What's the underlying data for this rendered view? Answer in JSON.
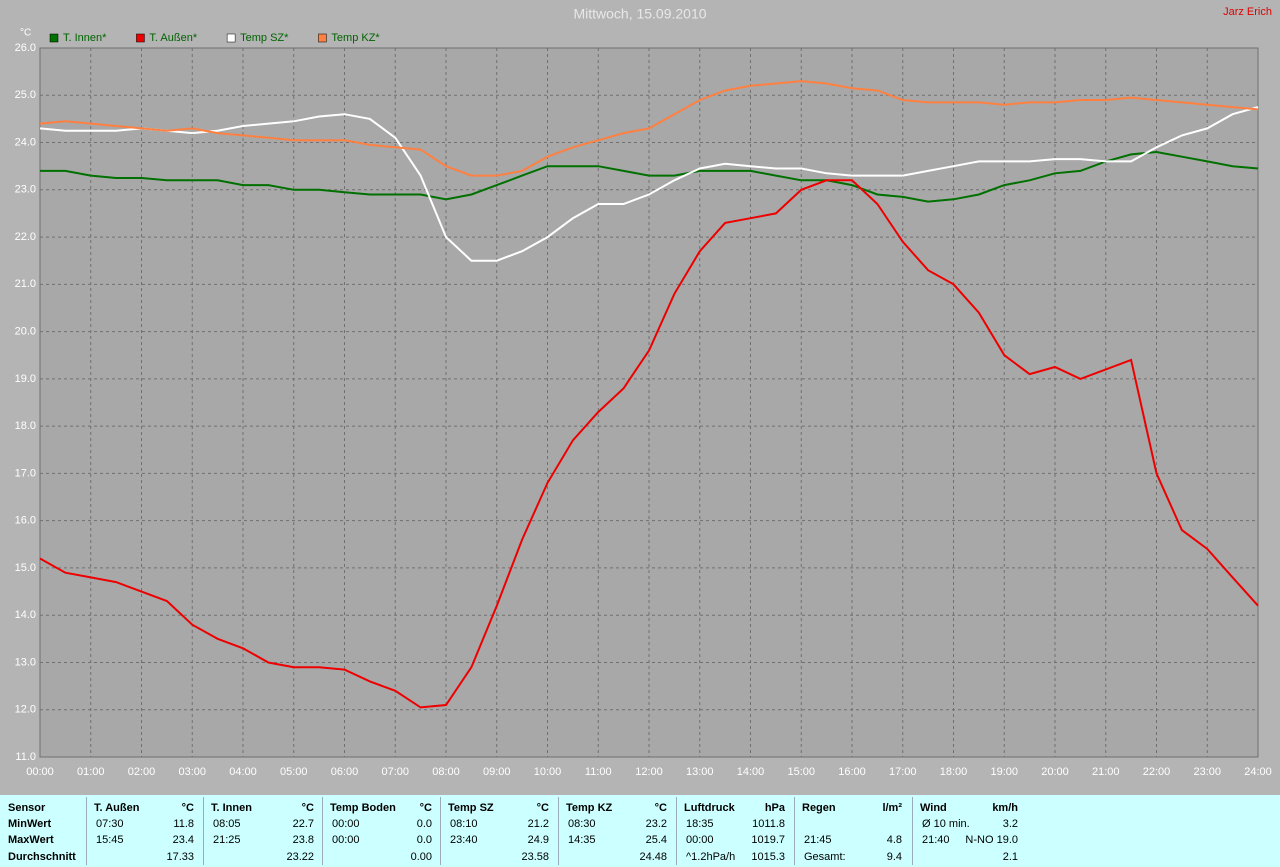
{
  "chart_data": {
    "type": "line",
    "title": "Mittwoch, 15.09.2010",
    "author": "Jarz Erich",
    "y_unit": "°C",
    "x": [
      0,
      0.5,
      1,
      1.5,
      2,
      2.5,
      3,
      3.5,
      4,
      4.5,
      5,
      5.5,
      6,
      6.5,
      7,
      7.5,
      8,
      8.5,
      9,
      9.5,
      10,
      10.5,
      11,
      11.5,
      12,
      12.5,
      13,
      13.5,
      14,
      14.5,
      15,
      15.5,
      16,
      16.5,
      17,
      17.5,
      18,
      18.5,
      19,
      19.5,
      20,
      20.5,
      21,
      21.5,
      22,
      22.5,
      23,
      23.5,
      24
    ],
    "series": [
      {
        "name": "T. Innen*",
        "color": "#007000",
        "values": [
          23.4,
          23.4,
          23.3,
          23.25,
          23.25,
          23.2,
          23.2,
          23.2,
          23.1,
          23.1,
          23.0,
          23.0,
          22.95,
          22.9,
          22.9,
          22.9,
          22.8,
          22.9,
          23.1,
          23.3,
          23.5,
          23.5,
          23.5,
          23.4,
          23.3,
          23.3,
          23.4,
          23.4,
          23.4,
          23.3,
          23.2,
          23.2,
          23.1,
          22.9,
          22.85,
          22.75,
          22.8,
          22.9,
          23.1,
          23.2,
          23.35,
          23.4,
          23.6,
          23.75,
          23.8,
          23.7,
          23.6,
          23.5,
          23.45
        ]
      },
      {
        "name": "T. Außen*",
        "color": "#ee0000",
        "values": [
          15.2,
          14.9,
          14.8,
          14.7,
          14.5,
          14.3,
          13.8,
          13.5,
          13.3,
          13.0,
          12.9,
          12.9,
          12.85,
          12.6,
          12.4,
          12.05,
          12.1,
          12.9,
          14.2,
          15.6,
          16.8,
          17.7,
          18.3,
          18.8,
          19.6,
          20.8,
          21.7,
          22.3,
          22.4,
          22.5,
          23.0,
          23.2,
          23.2,
          22.7,
          21.9,
          21.3,
          21.0,
          20.4,
          19.5,
          19.1,
          19.25,
          19.0,
          19.2,
          19.4,
          17.0,
          15.8,
          15.4,
          14.8,
          14.2
        ]
      },
      {
        "name": "Temp SZ*",
        "color": "#ffffff",
        "values": [
          24.3,
          24.25,
          24.25,
          24.25,
          24.3,
          24.25,
          24.2,
          24.25,
          24.35,
          24.4,
          24.45,
          24.55,
          24.6,
          24.5,
          24.1,
          23.3,
          22.0,
          21.5,
          21.5,
          21.7,
          22.0,
          22.4,
          22.7,
          22.7,
          22.9,
          23.2,
          23.45,
          23.55,
          23.5,
          23.45,
          23.45,
          23.35,
          23.3,
          23.3,
          23.3,
          23.4,
          23.5,
          23.6,
          23.6,
          23.6,
          23.65,
          23.65,
          23.6,
          23.6,
          23.9,
          24.15,
          24.3,
          24.6,
          24.75
        ]
      },
      {
        "name": "Temp KZ*",
        "color": "#ff8040",
        "values": [
          24.4,
          24.45,
          24.4,
          24.35,
          24.3,
          24.25,
          24.3,
          24.2,
          24.15,
          24.1,
          24.05,
          24.05,
          24.05,
          23.95,
          23.9,
          23.85,
          23.5,
          23.3,
          23.3,
          23.4,
          23.7,
          23.9,
          24.05,
          24.2,
          24.3,
          24.6,
          24.9,
          25.1,
          25.2,
          25.25,
          25.3,
          25.25,
          25.15,
          25.1,
          24.9,
          24.85,
          24.85,
          24.85,
          24.8,
          24.85,
          24.85,
          24.9,
          24.9,
          24.95,
          24.9,
          24.85,
          24.8,
          24.75,
          24.7
        ]
      }
    ],
    "xlim": [
      0,
      24
    ],
    "xticks": [
      {
        "value": 0,
        "label": "00:00"
      },
      {
        "value": 1,
        "label": "01:00"
      },
      {
        "value": 2,
        "label": "02:00"
      },
      {
        "value": 3,
        "label": "03:00"
      },
      {
        "value": 4,
        "label": "04:00"
      },
      {
        "value": 5,
        "label": "05:00"
      },
      {
        "value": 6,
        "label": "06:00"
      },
      {
        "value": 7,
        "label": "07:00"
      },
      {
        "value": 8,
        "label": "08:00"
      },
      {
        "value": 9,
        "label": "09:00"
      },
      {
        "value": 10,
        "label": "10:00"
      },
      {
        "value": 11,
        "label": "11:00"
      },
      {
        "value": 12,
        "label": "12:00"
      },
      {
        "value": 13,
        "label": "13:00"
      },
      {
        "value": 14,
        "label": "14:00"
      },
      {
        "value": 15,
        "label": "15:00"
      },
      {
        "value": 16,
        "label": "16:00"
      },
      {
        "value": 17,
        "label": "17:00"
      },
      {
        "value": 18,
        "label": "18:00"
      },
      {
        "value": 19,
        "label": "19:00"
      },
      {
        "value": 20,
        "label": "20:00"
      },
      {
        "value": 21,
        "label": "21:00"
      },
      {
        "value": 22,
        "label": "22:00"
      },
      {
        "value": 23,
        "label": "23:00"
      },
      {
        "value": 24,
        "label": "24:00"
      }
    ],
    "ylim": [
      11,
      26
    ],
    "yticks": [
      {
        "value": 11,
        "label": "11.0"
      },
      {
        "value": 12,
        "label": "12.0"
      },
      {
        "value": 13,
        "label": "13.0"
      },
      {
        "value": 14,
        "label": "14.0"
      },
      {
        "value": 15,
        "label": "15.0"
      },
      {
        "value": 16,
        "label": "16.0"
      },
      {
        "value": 17,
        "label": "17.0"
      },
      {
        "value": 18,
        "label": "18.0"
      },
      {
        "value": 19,
        "label": "19.0"
      },
      {
        "value": 20,
        "label": "20.0"
      },
      {
        "value": 21,
        "label": "21.0"
      },
      {
        "value": 22,
        "label": "22.0"
      },
      {
        "value": 23,
        "label": "23.0"
      },
      {
        "value": 24,
        "label": "24.0"
      },
      {
        "value": 25,
        "label": "25.0"
      },
      {
        "value": 26,
        "label": "26.0"
      }
    ],
    "grid": true
  },
  "stats": {
    "row_labels": [
      "Sensor",
      "MinWert",
      "MaxWert",
      "Durchschnitt"
    ],
    "groups": [
      {
        "name": "T. Außen",
        "unit": "°C",
        "min": [
          "07:30",
          "11.8"
        ],
        "max": [
          "15:45",
          "23.4"
        ],
        "avg": [
          "17.33"
        ]
      },
      {
        "name": "T. Innen",
        "unit": "°C",
        "min": [
          "08:05",
          "22.7"
        ],
        "max": [
          "21:25",
          "23.8"
        ],
        "avg": [
          "23.22"
        ]
      },
      {
        "name": "Temp Boden",
        "unit": "°C",
        "min": [
          "00:00",
          "0.0"
        ],
        "max": [
          "00:00",
          "0.0"
        ],
        "avg": [
          "0.00"
        ]
      },
      {
        "name": "Temp SZ",
        "unit": "°C",
        "min": [
          "08:10",
          "21.2"
        ],
        "max": [
          "23:40",
          "24.9"
        ],
        "avg": [
          "23.58"
        ]
      },
      {
        "name": "Temp KZ",
        "unit": "°C",
        "min": [
          "08:30",
          "23.2"
        ],
        "max": [
          "14:35",
          "25.4"
        ],
        "avg": [
          "24.48"
        ]
      },
      {
        "name": "Luftdruck",
        "unit": "hPa",
        "min": [
          "18:35",
          "1011.8"
        ],
        "max": [
          "00:00",
          "1019.7"
        ],
        "avg": [
          "^1.2hPa/h",
          "1015.3"
        ]
      },
      {
        "name": "Regen",
        "unit": "l/m²",
        "min": [],
        "max": [
          "21:45",
          "4.8"
        ],
        "avg": [
          "Gesamt:",
          "9.4"
        ]
      },
      {
        "name": "Wind",
        "unit": "km/h",
        "min": [
          "Ø 10 min.",
          "3.2"
        ],
        "max": [
          "21:40",
          "N-NO 19.0"
        ],
        "avg": [
          "2.1"
        ]
      }
    ]
  }
}
